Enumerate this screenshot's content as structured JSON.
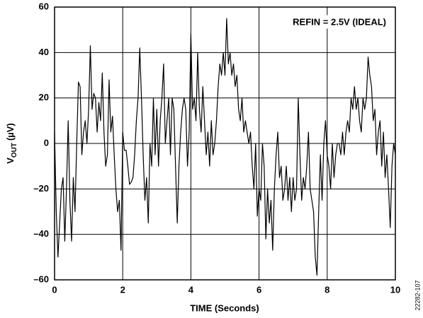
{
  "chart_data": {
    "type": "line",
    "annotation": "REFIN = 2.5V (IDEAL)",
    "xlabel": "TIME (Seconds)",
    "ylabel": [
      "V",
      "OUT",
      "(µV)"
    ],
    "figure_id": "22282-107",
    "xlim": [
      0,
      10
    ],
    "xticks": [
      0,
      2,
      4,
      6,
      8,
      10
    ],
    "ylim": [
      -60,
      60
    ],
    "yticks": [
      {
        "value": -60,
        "label": "–60"
      },
      {
        "value": -40,
        "label": "–40"
      },
      {
        "value": -20,
        "label": "–20"
      },
      0,
      20,
      40,
      60
    ],
    "grid": true,
    "x": [
      0,
      0.05,
      0.1,
      0.15,
      0.2,
      0.25,
      0.3,
      0.35,
      0.4,
      0.45,
      0.5,
      0.55,
      0.6,
      0.65,
      0.7,
      0.75,
      0.8,
      0.85,
      0.9,
      0.95,
      1,
      1.05,
      1.1,
      1.15,
      1.2,
      1.25,
      1.3,
      1.35,
      1.4,
      1.45,
      1.5,
      1.55,
      1.6,
      1.65,
      1.7,
      1.75,
      1.8,
      1.85,
      1.9,
      1.95,
      2,
      2.05,
      2.1,
      2.15,
      2.2,
      2.25,
      2.3,
      2.35,
      2.4,
      2.45,
      2.5,
      2.55,
      2.6,
      2.65,
      2.7,
      2.75,
      2.8,
      2.85,
      2.9,
      2.95,
      3,
      3.05,
      3.1,
      3.15,
      3.2,
      3.25,
      3.3,
      3.35,
      3.4,
      3.45,
      3.5,
      3.55,
      3.6,
      3.65,
      3.7,
      3.75,
      3.8,
      3.85,
      3.9,
      3.95,
      4,
      4.05,
      4.1,
      4.15,
      4.2,
      4.25,
      4.3,
      4.35,
      4.4,
      4.45,
      4.5,
      4.55,
      4.6,
      4.65,
      4.7,
      4.75,
      4.8,
      4.85,
      4.9,
      4.95,
      5,
      5.05,
      5.1,
      5.15,
      5.2,
      5.25,
      5.3,
      5.35,
      5.4,
      5.45,
      5.5,
      5.55,
      5.6,
      5.65,
      5.7,
      5.75,
      5.8,
      5.85,
      5.9,
      5.95,
      6,
      6.05,
      6.1,
      6.15,
      6.2,
      6.25,
      6.3,
      6.35,
      6.4,
      6.45,
      6.5,
      6.55,
      6.6,
      6.65,
      6.7,
      6.75,
      6.8,
      6.85,
      6.9,
      6.95,
      7,
      7.05,
      7.1,
      7.15,
      7.2,
      7.25,
      7.3,
      7.35,
      7.4,
      7.45,
      7.5,
      7.55,
      7.6,
      7.65,
      7.7,
      7.75,
      7.8,
      7.85,
      7.9,
      7.95,
      8,
      8.05,
      8.1,
      8.15,
      8.2,
      8.25,
      8.3,
      8.35,
      8.4,
      8.45,
      8.5,
      8.55,
      8.6,
      8.65,
      8.7,
      8.75,
      8.8,
      8.85,
      8.9,
      8.95,
      9,
      9.05,
      9.1,
      9.15,
      9.2,
      9.25,
      9.3,
      9.35,
      9.4,
      9.45,
      9.5,
      9.55,
      9.6,
      9.65,
      9.7,
      9.75,
      9.8,
      9.85,
      9.9,
      9.95,
      10
    ],
    "series": [
      {
        "color": "#000000",
        "values": [
          5,
          -30,
          -50,
          -35,
          -20,
          -15,
          -43,
          -20,
          10,
          -25,
          -43,
          -15,
          -30,
          0,
          27,
          25,
          -5,
          5,
          10,
          0,
          15,
          43,
          15,
          22,
          20,
          5,
          18,
          10,
          31,
          5,
          -10,
          -5,
          28,
          5,
          12,
          -5,
          -20,
          -30,
          -25,
          -47,
          5,
          -3,
          -3,
          -10,
          -18,
          -17,
          -15,
          -5,
          10,
          20,
          42,
          20,
          -5,
          -25,
          -15,
          -35,
          0,
          -10,
          20,
          -5,
          15,
          -10,
          10,
          20,
          35,
          0,
          10,
          20,
          -5,
          20,
          15,
          -10,
          -35,
          -10,
          5,
          15,
          20,
          15,
          -10,
          5,
          48,
          15,
          20,
          10,
          40,
          15,
          5,
          25,
          10,
          -5,
          5,
          -10,
          10,
          -5,
          0,
          10,
          25,
          35,
          30,
          40,
          30,
          55,
          35,
          40,
          30,
          35,
          25,
          30,
          15,
          10,
          20,
          5,
          10,
          5,
          0,
          5,
          -10,
          -20,
          0,
          -32,
          -20,
          -25,
          0,
          -10,
          -42,
          -20,
          -35,
          -25,
          -47,
          -20,
          -5,
          5,
          -15,
          -10,
          -25,
          -20,
          -10,
          -25,
          -15,
          -30,
          -15,
          -25,
          -20,
          20,
          -5,
          -25,
          -15,
          -20,
          -10,
          5,
          -20,
          -25,
          -30,
          -50,
          -58,
          -30,
          -5,
          -25,
          0,
          10,
          -5,
          -10,
          -20,
          0,
          -15,
          -5,
          0,
          0,
          -5,
          5,
          -5,
          5,
          10,
          5,
          20,
          15,
          25,
          15,
          20,
          10,
          5,
          20,
          15,
          20,
          38,
          30,
          25,
          10,
          15,
          -5,
          5,
          10,
          -10,
          5,
          -15,
          -5,
          -20,
          -37,
          -10,
          0,
          -5
        ]
      }
    ]
  }
}
